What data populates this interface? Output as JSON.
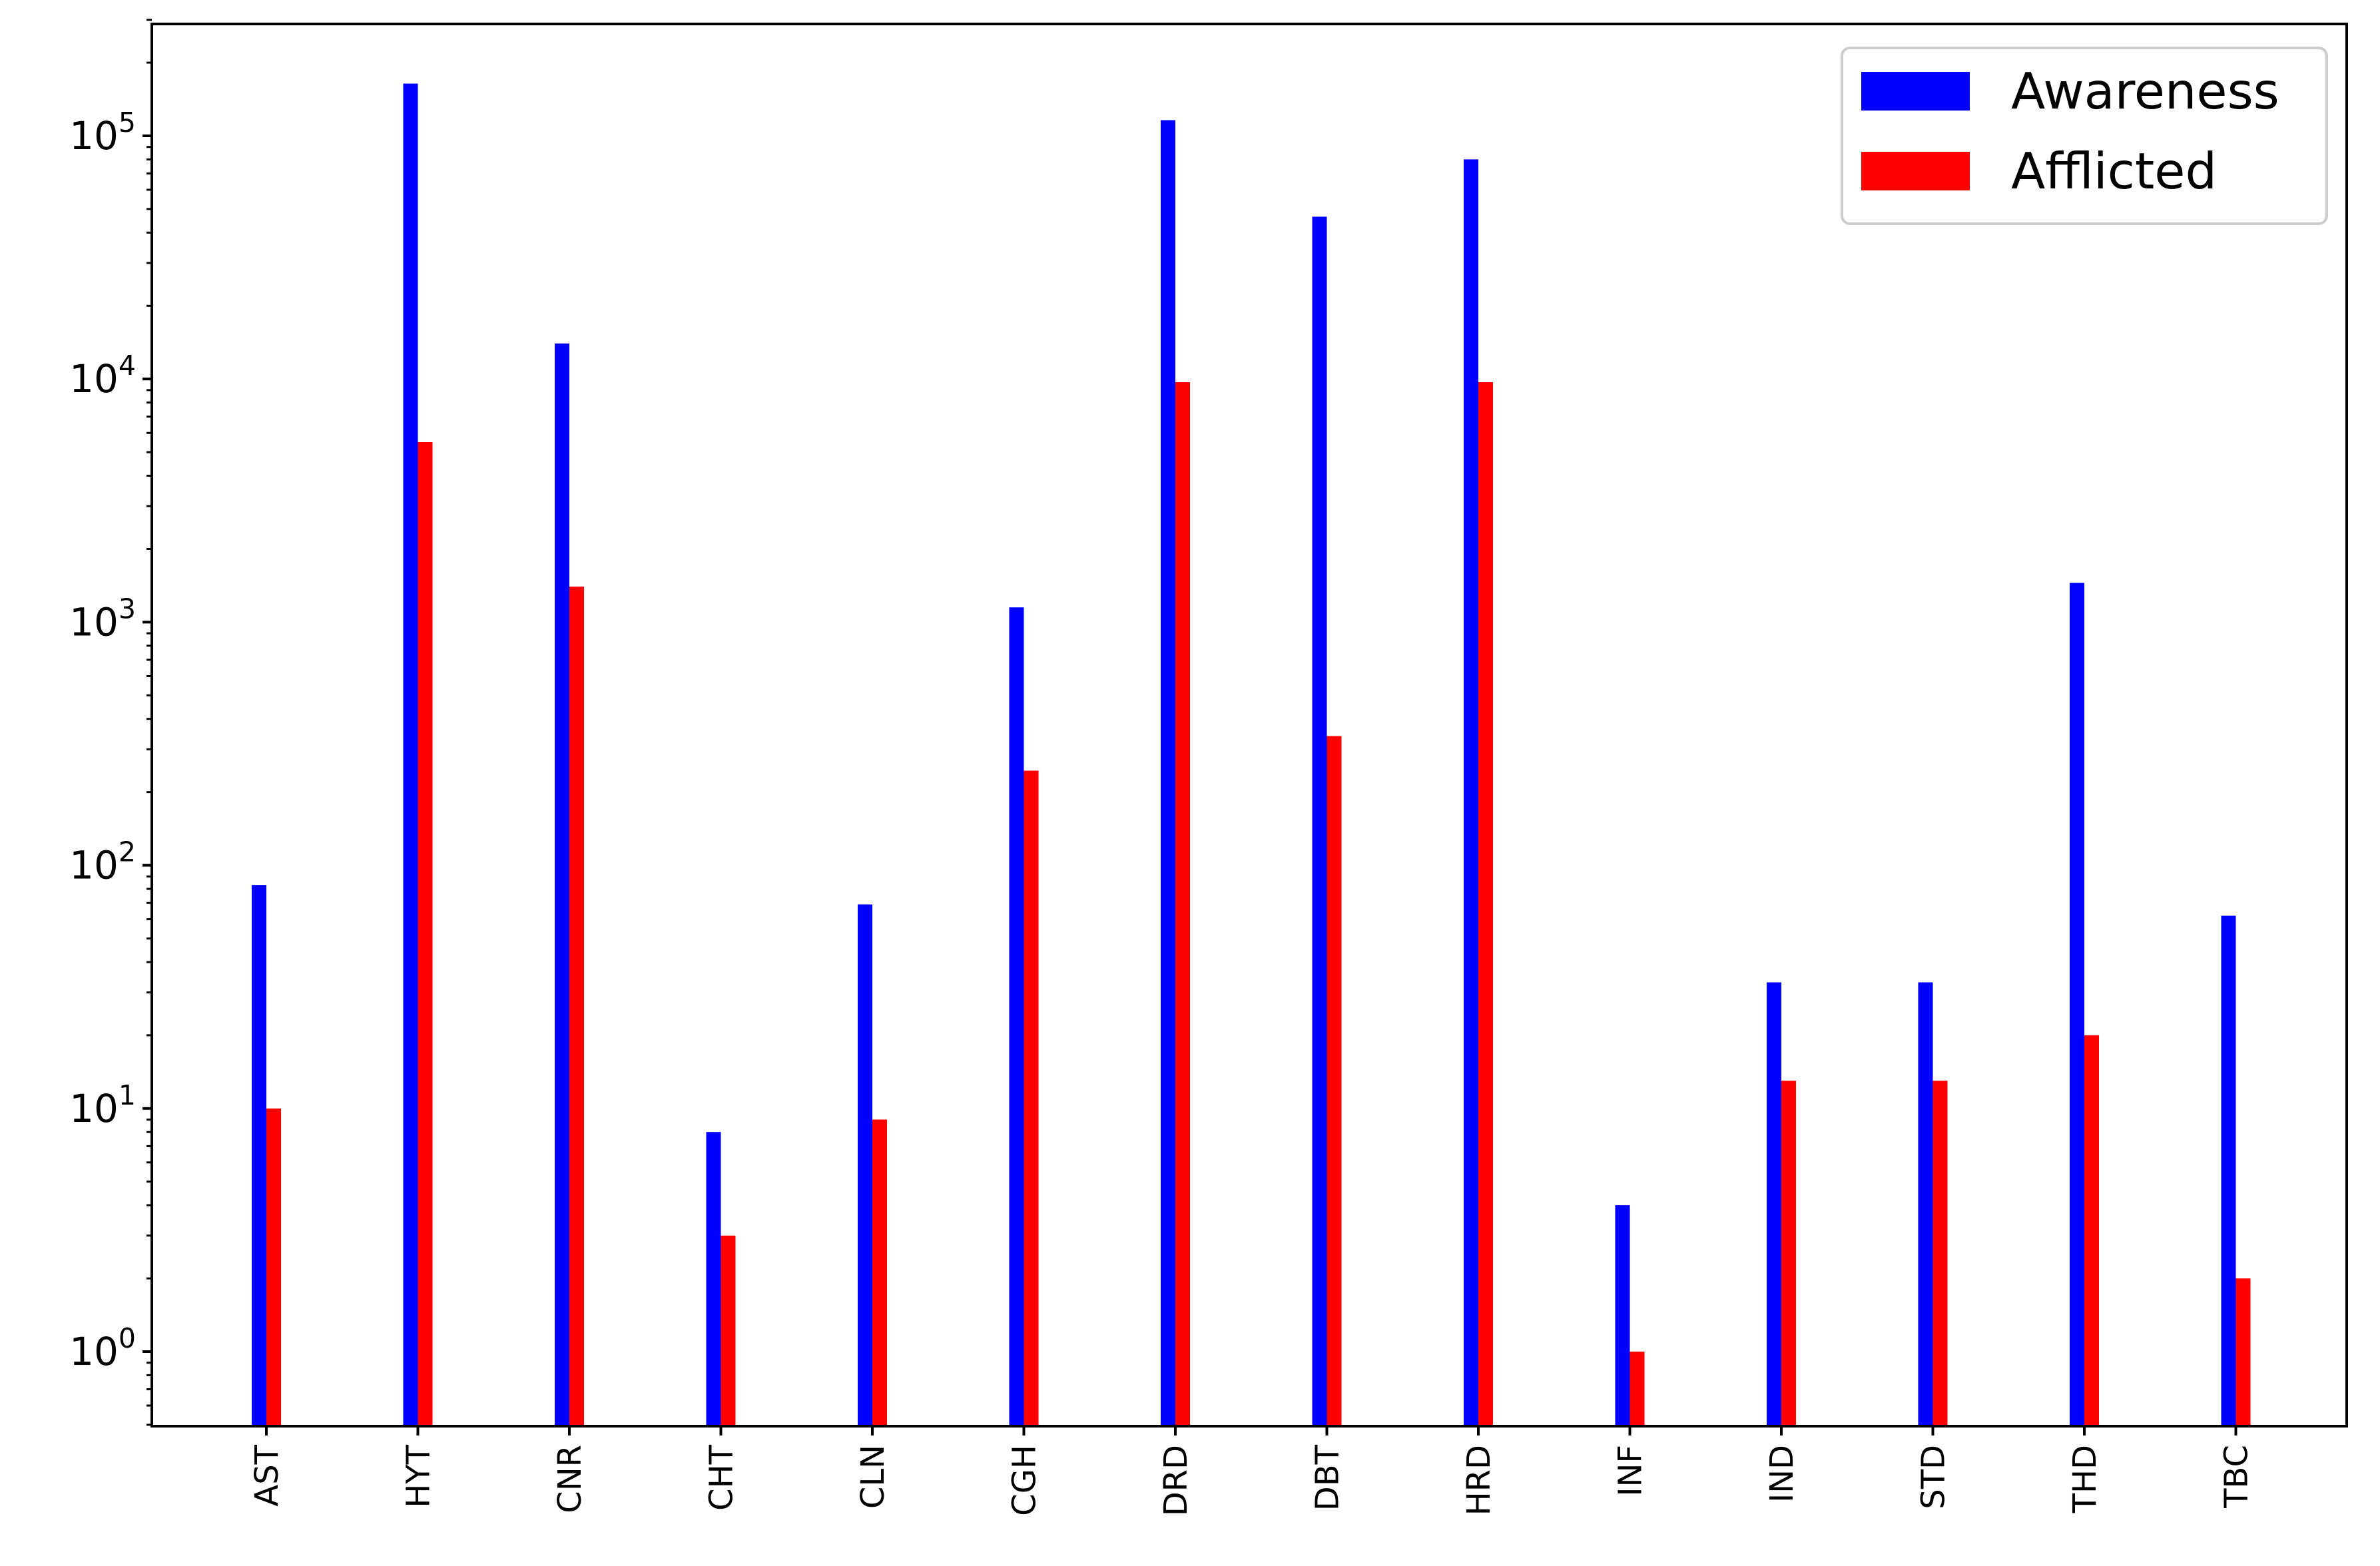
{
  "chart_data": {
    "type": "bar",
    "title": "",
    "xlabel": "",
    "ylabel": "",
    "yscale": "log",
    "ylim": [
      0.5,
      300000
    ],
    "yticks": [
      {
        "value": 1,
        "base": "10",
        "exp": "0"
      },
      {
        "value": 10,
        "base": "10",
        "exp": "1"
      },
      {
        "value": 100,
        "base": "10",
        "exp": "2"
      },
      {
        "value": 1000,
        "base": "10",
        "exp": "3"
      },
      {
        "value": 10000,
        "base": "10",
        "exp": "4"
      },
      {
        "value": 100000,
        "base": "10",
        "exp": "5"
      }
    ],
    "grid": false,
    "legend_position": "top-right",
    "categories": [
      "AST",
      "HYT",
      "CNR",
      "CHT",
      "CLN",
      "CGH",
      "DRD",
      "DBT",
      "HRD",
      "INF",
      "IND",
      "STD",
      "THD",
      "TBC"
    ],
    "series": [
      {
        "name": "Awareness",
        "color": "#0000ff",
        "values": [
          83,
          164000,
          14000,
          8,
          69,
          1150,
          116000,
          46500,
          80000,
          4,
          33,
          33,
          1450,
          62
        ]
      },
      {
        "name": "Afflicted",
        "color": "#ff0000",
        "values": [
          10,
          5500,
          1400,
          3,
          9,
          245,
          9700,
          340,
          9700,
          1,
          13,
          13,
          20,
          2
        ]
      }
    ]
  }
}
